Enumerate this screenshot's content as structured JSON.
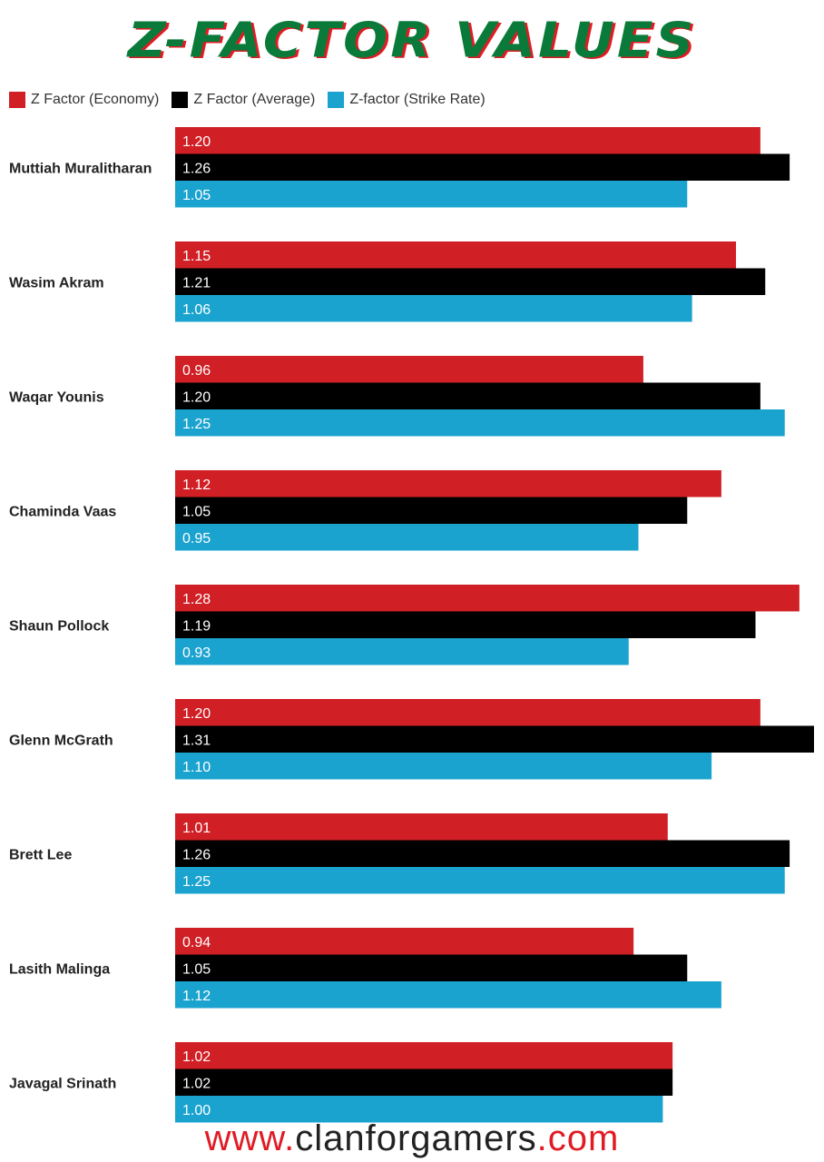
{
  "title": "Z-FACTOR VALUES",
  "footer": {
    "prefix": "www.",
    "middle": "clanforgamers",
    "suffix": ".com"
  },
  "colors": {
    "economy": "#d01f25",
    "average": "#000000",
    "strike_rate": "#1ba3cf",
    "title": "#0a7a3a",
    "title_shadow": "#e01b24"
  },
  "chart_data": {
    "type": "bar",
    "orientation": "horizontal",
    "title": "Z-FACTOR VALUES",
    "legend": [
      "Z Factor (Economy)",
      "Z Factor (Average)",
      "Z-factor (Strike Rate)"
    ],
    "categories": [
      "Muttiah Muralitharan",
      "Wasim Akram",
      "Waqar Younis",
      "Chaminda Vaas",
      "Shaun Pollock",
      "Glenn McGrath",
      "Brett Lee",
      "Lasith Malinga",
      "Javagal Srinath"
    ],
    "series": [
      {
        "name": "Z Factor (Economy)",
        "values": [
          "1.20",
          "1.15",
          "0.96",
          "1.12",
          "1.28",
          "1.20",
          "1.01",
          "0.94",
          "1.02"
        ]
      },
      {
        "name": "Z Factor (Average)",
        "values": [
          "1.26",
          "1.21",
          "1.20",
          "1.05",
          "1.19",
          "1.31",
          "1.26",
          "1.05",
          "1.02"
        ]
      },
      {
        "name": "Z-factor (Strike Rate)",
        "values": [
          "1.05",
          "1.06",
          "1.25",
          "0.95",
          "0.93",
          "1.10",
          "1.25",
          "1.12",
          "1.00"
        ]
      }
    ],
    "xlim": [
      0,
      1.31
    ],
    "legend_position": "top-left",
    "grid": false
  }
}
